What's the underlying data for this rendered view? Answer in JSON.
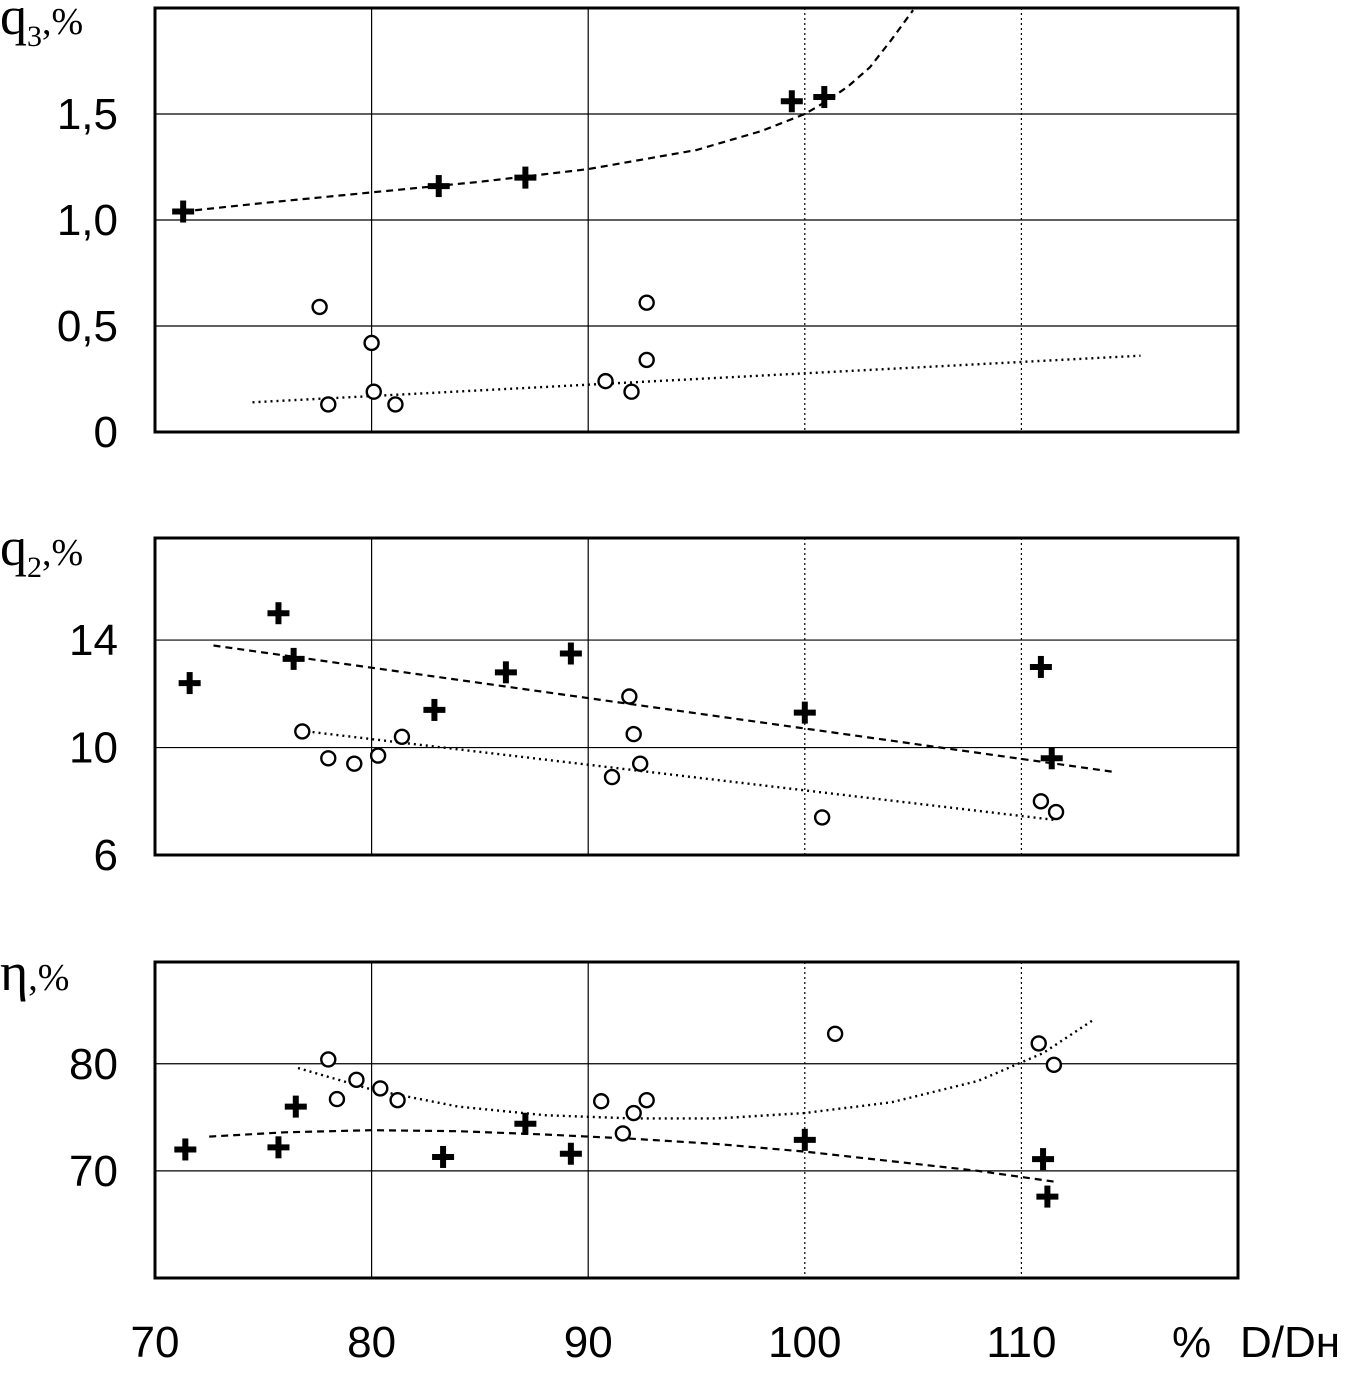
{
  "x_axis": {
    "label_prefix": "%",
    "label": "D/Dн",
    "ticks": [
      "70",
      "80",
      "90",
      "100",
      "110"
    ],
    "range": [
      70,
      120
    ],
    "tick_values": [
      70,
      80,
      90,
      100,
      110
    ]
  },
  "chart_data": [
    {
      "type": "scatter",
      "ylabel_sym": "q",
      "ylabel_sub": "3",
      "ylabel_pct": ",%",
      "ylim": [
        0,
        2.0
      ],
      "ytick_values": [
        0,
        0.5,
        1.0,
        1.5
      ],
      "ytick_labels": [
        "0",
        "0,5",
        "1,0",
        "1,5"
      ],
      "grid": true,
      "series": [
        {
          "marker": "cross",
          "x": [
            71.3,
            83.1,
            87.1,
            99.4,
            100.9
          ],
          "y": [
            1.04,
            1.16,
            1.2,
            1.56,
            1.58
          ]
        },
        {
          "marker": "circle",
          "x": [
            77.6,
            78.0,
            80.0,
            80.1,
            81.1,
            90.8,
            92.0,
            92.7,
            92.7
          ],
          "y": [
            0.59,
            0.13,
            0.42,
            0.19,
            0.13,
            0.24,
            0.19,
            0.34,
            0.61
          ]
        }
      ],
      "fits": [
        {
          "style": "dashed",
          "x": [
            71.3,
            75,
            80,
            85,
            90,
            95,
            98,
            100,
            101,
            102,
            103,
            104,
            105
          ],
          "y": [
            1.04,
            1.08,
            1.13,
            1.18,
            1.24,
            1.33,
            1.42,
            1.5,
            1.56,
            1.63,
            1.72,
            1.85,
            1.99
          ]
        },
        {
          "style": "dotted",
          "x": [
            74.5,
            115.5
          ],
          "y": [
            0.14,
            0.36
          ]
        }
      ]
    },
    {
      "type": "scatter",
      "ylabel_sym": "q",
      "ylabel_sub": "2",
      "ylabel_pct": ",%",
      "ylim": [
        6,
        17.8
      ],
      "ytick_values": [
        6,
        10,
        14
      ],
      "ytick_labels": [
        "6",
        "10",
        "14"
      ],
      "grid": true,
      "series": [
        {
          "marker": "cross",
          "x": [
            71.6,
            75.7,
            76.4,
            82.9,
            86.2,
            89.2,
            100.0,
            110.9,
            111.4
          ],
          "y": [
            12.4,
            15.0,
            13.3,
            11.4,
            12.8,
            13.5,
            11.3,
            13.0,
            9.6
          ]
        },
        {
          "marker": "circle",
          "x": [
            76.8,
            78.0,
            79.2,
            80.3,
            81.4,
            91.1,
            91.9,
            92.1,
            92.4,
            100.8,
            110.9,
            111.6
          ],
          "y": [
            10.6,
            9.6,
            9.4,
            9.7,
            10.4,
            8.9,
            11.9,
            10.5,
            9.4,
            7.4,
            8.0,
            7.6
          ]
        }
      ],
      "fits": [
        {
          "style": "dashed",
          "x": [
            72.7,
            114.2
          ],
          "y": [
            13.8,
            9.1
          ]
        },
        {
          "style": "dotted",
          "x": [
            77.0,
            111.6
          ],
          "y": [
            10.6,
            7.3
          ]
        }
      ]
    },
    {
      "type": "scatter",
      "ylabel_sym": "η",
      "ylabel_sub": "",
      "ylabel_pct": ",%",
      "ylim": [
        60,
        89.5
      ],
      "ytick_values": [
        70,
        80
      ],
      "ytick_labels": [
        "70",
        "80"
      ],
      "grid": true,
      "series": [
        {
          "marker": "cross",
          "x": [
            71.4,
            75.7,
            76.5,
            83.3,
            87.1,
            89.2,
            100.0,
            111.0,
            111.2
          ],
          "y": [
            72.0,
            72.2,
            76.0,
            71.3,
            74.4,
            71.6,
            72.9,
            71.1,
            67.6
          ]
        },
        {
          "marker": "circle",
          "x": [
            78.0,
            78.4,
            79.3,
            80.4,
            81.2,
            90.6,
            91.6,
            92.1,
            92.7,
            101.4,
            110.8,
            111.5
          ],
          "y": [
            80.4,
            76.7,
            78.5,
            77.7,
            76.6,
            76.5,
            73.5,
            75.4,
            76.6,
            82.8,
            81.9,
            79.9
          ]
        }
      ],
      "fits": [
        {
          "style": "dashed",
          "x": [
            72.5,
            76,
            80,
            84,
            88,
            92,
            96,
            100,
            104,
            108,
            111.5
          ],
          "y": [
            73.2,
            73.6,
            73.8,
            73.7,
            73.4,
            73.0,
            72.5,
            71.8,
            70.9,
            70.0,
            69.0
          ]
        },
        {
          "style": "dotted",
          "x": [
            76.6,
            80,
            84,
            88,
            92,
            96,
            100,
            104,
            108,
            111,
            113.4
          ],
          "y": [
            79.6,
            77.6,
            76.0,
            75.2,
            74.9,
            74.9,
            75.4,
            76.4,
            78.4,
            81.0,
            84.2
          ]
        }
      ]
    }
  ]
}
